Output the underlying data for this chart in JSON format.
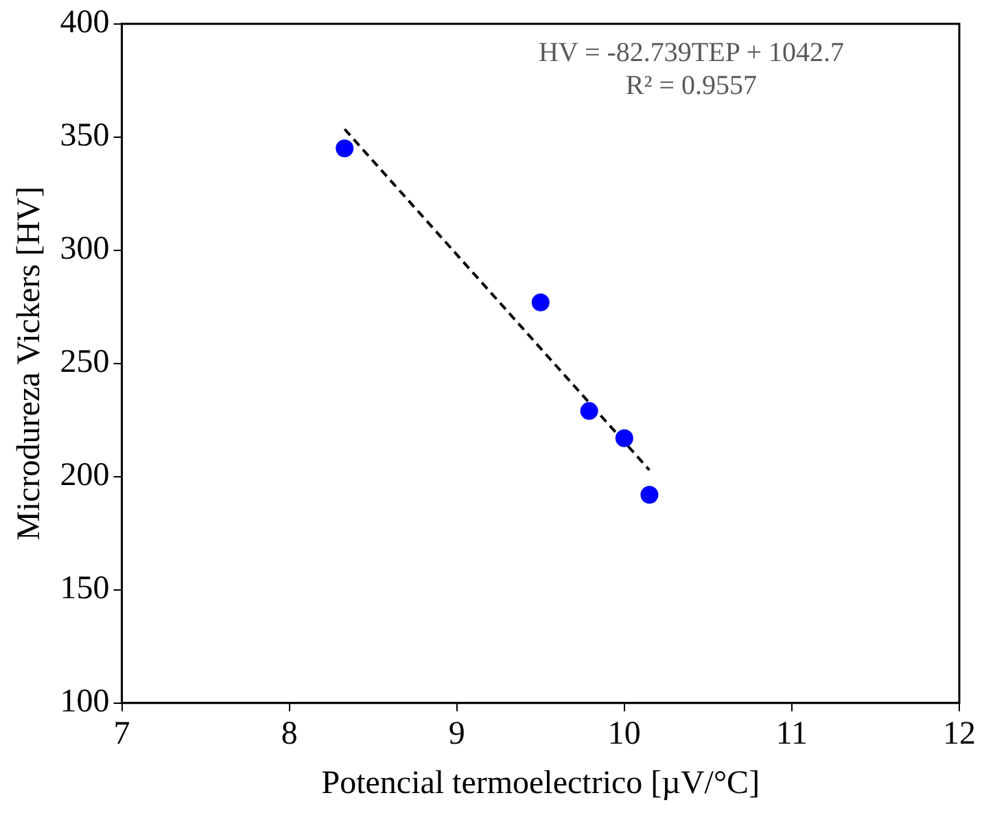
{
  "chart_data": {
    "type": "scatter",
    "xlabel": "Potencial termoelectrico [µV/°C]",
    "ylabel": "Microdureza Vickers [HV]",
    "x": [
      8.33,
      9.5,
      9.79,
      10.0,
      10.15
    ],
    "series": [
      {
        "color": "#0000ff",
        "values": [
          345,
          277,
          229,
          217,
          192
        ]
      },
      {
        "type": "line",
        "x": [
          8.33,
          10.15
        ],
        "values": [
          353.5,
          202.9
        ],
        "color": "#000000",
        "line_style": "dashed",
        "marker": "none"
      }
    ],
    "marker": "circle",
    "xlim": [
      7,
      12
    ],
    "xticks": [
      7,
      8,
      9,
      10,
      11,
      12
    ],
    "ylim": [
      100,
      400
    ],
    "yticks": [
      100,
      150,
      200,
      250,
      300,
      350,
      400
    ],
    "grid": false,
    "legend": false,
    "annotations": [
      "HV = -82.739TEP + 1042.7",
      "R² = 0.9557"
    ]
  }
}
